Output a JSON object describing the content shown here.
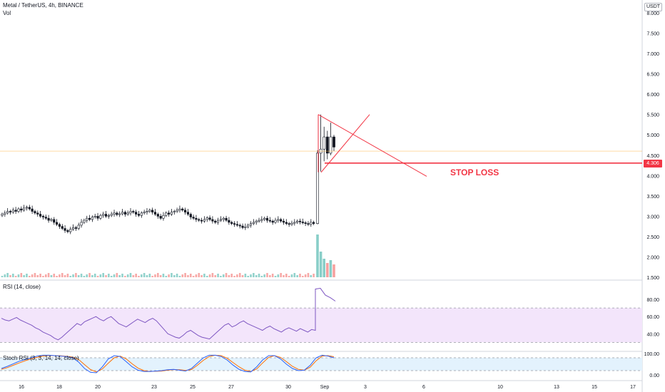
{
  "header": {
    "title": "Metal / TetherUS, 4h, BINANCE",
    "vol_label": "Vol",
    "currency": "USDT"
  },
  "annotations": {
    "stop_loss_label": "STOP LOSS",
    "current_price_tag": "4.306"
  },
  "colors": {
    "up": "#26a69a",
    "down": "#ef5350",
    "candle_body_up": "#ffffff",
    "candle_body_down": "#131722",
    "drawing": "#f23645",
    "rsi": "#7e57c2",
    "stoch_k": "#2962ff",
    "stoch_d": "#ff6d00",
    "rsi_band": "#f3e5fb",
    "stoch_band": "#e3f2fd"
  },
  "chart_data": {
    "type": "candlestick",
    "title": "Metal / TetherUS, 4h, BINANCE",
    "x_ticks": [
      "16",
      "18",
      "20",
      "23",
      "25",
      "27",
      "30",
      "Sep",
      "3",
      "6",
      "10",
      "13",
      "15",
      "17"
    ],
    "price_axis": {
      "ticks": [
        "8.000",
        "7.500",
        "7.000",
        "6.500",
        "6.000",
        "5.500",
        "5.000",
        "4.500",
        "4.000",
        "3.500",
        "3.000",
        "2.500",
        "2.000",
        "1.500"
      ],
      "range": [
        1.5,
        8.0
      ]
    },
    "current_price": 4.6,
    "stop_loss": 4.306,
    "closes_before_breakout": [
      3.05,
      3.08,
      3.12,
      3.1,
      3.15,
      3.12,
      3.18,
      3.15,
      3.2,
      3.22,
      3.18,
      3.12,
      3.08,
      3.05,
      3.0,
      2.98,
      2.95,
      2.9,
      2.92,
      2.85,
      2.8,
      2.75,
      2.7,
      2.65,
      2.62,
      2.68,
      2.72,
      2.7,
      2.78,
      2.85,
      2.9,
      2.95,
      2.92,
      2.98,
      3.0,
      2.95,
      3.02,
      3.05,
      3.0,
      3.02,
      3.05,
      3.08,
      3.04,
      3.06,
      3.1,
      3.05,
      3.08,
      3.12,
      3.1,
      3.05,
      3.02,
      3.08,
      3.1,
      3.12,
      3.15,
      3.1,
      3.05,
      3.0,
      2.95,
      3.02,
      3.08,
      3.05,
      3.1,
      3.12,
      3.15,
      3.18,
      3.15,
      3.1,
      3.05,
      2.98,
      2.95,
      2.92,
      2.9,
      2.88,
      2.92,
      2.96,
      2.92,
      2.88,
      2.85,
      2.9,
      2.92,
      2.95,
      2.9,
      2.85,
      2.82,
      2.8,
      2.78,
      2.76,
      2.72,
      2.74,
      2.78,
      2.82,
      2.85,
      2.88,
      2.9,
      2.92,
      2.95,
      2.9,
      2.88,
      2.85,
      2.9,
      2.92,
      2.88,
      2.85,
      2.82,
      2.8,
      2.83,
      2.85,
      2.88,
      2.86,
      2.84,
      2.82,
      2.8,
      2.85,
      2.82
    ],
    "breakout_candles": [
      {
        "o": 2.82,
        "h": 4.62,
        "l": 2.8,
        "c": 4.55
      },
      {
        "o": 4.55,
        "h": 5.5,
        "l": 4.1,
        "c": 4.65
      },
      {
        "o": 4.65,
        "h": 5.2,
        "l": 4.35,
        "c": 4.95
      },
      {
        "o": 4.95,
        "h": 5.1,
        "l": 4.4,
        "c": 4.55
      },
      {
        "o": 4.55,
        "h": 5.3,
        "l": 4.5,
        "c": 4.95
      },
      {
        "o": 4.95,
        "h": 5.0,
        "l": 4.6,
        "c": 4.7
      }
    ],
    "drawings": {
      "triangle_top": [
        [
          5.5
        ],
        [
          5.0
        ]
      ],
      "support_to": 4.85,
      "downtrend_end": 3.98,
      "stop_loss_line": 4.306
    },
    "indicators": {
      "volume": {
        "label": "Vol"
      },
      "rsi": {
        "label": "RSI (14, close)",
        "ticks": [
          "80.00",
          "60.00",
          "40.00"
        ],
        "range": [
          27,
          95
        ],
        "bands": [
          30,
          70
        ],
        "values": [
          58,
          56,
          55,
          57,
          59,
          56,
          54,
          52,
          50,
          47,
          45,
          42,
          40,
          38,
          35,
          33,
          36,
          40,
          44,
          48,
          52,
          50,
          54,
          56,
          58,
          60,
          57,
          55,
          58,
          60,
          56,
          52,
          50,
          48,
          51,
          54,
          57,
          55,
          53,
          56,
          58,
          55,
          50,
          45,
          40,
          38,
          36,
          35,
          38,
          42,
          44,
          41,
          38,
          36,
          35,
          34,
          38,
          42,
          46,
          50,
          52,
          48,
          50,
          53,
          55,
          52,
          50,
          48,
          46,
          44,
          47,
          49,
          46,
          44,
          42,
          45,
          47,
          45,
          43,
          46,
          44,
          42,
          45,
          44,
          92,
          93,
          85,
          82,
          78
        ]
      },
      "stoch_rsi": {
        "label": "Stoch RSI (3, 3, 14, 14, close)",
        "ticks": [
          "100.00",
          "0.00"
        ],
        "range": [
          0,
          100
        ],
        "bands": [
          20,
          80
        ],
        "k": [
          30,
          40,
          52,
          64,
          72,
          80,
          88,
          92,
          92,
          90,
          88,
          86,
          80,
          60,
          30,
          12,
          10,
          38,
          75,
          90,
          86,
          62,
          38,
          22,
          16,
          16,
          18,
          20,
          24,
          26,
          22,
          18,
          30,
          55,
          80,
          92,
          92,
          86,
          70,
          46,
          26,
          16,
          14,
          38,
          70,
          90,
          90,
          75,
          50,
          30,
          20,
          22,
          45,
          80,
          92,
          88,
          80
        ],
        "d": [
          26,
          34,
          45,
          56,
          66,
          75,
          82,
          88,
          91,
          90,
          89,
          87,
          83,
          72,
          48,
          25,
          14,
          28,
          55,
          80,
          88,
          75,
          52,
          32,
          20,
          16,
          17,
          18,
          22,
          25,
          24,
          21,
          25,
          45,
          68,
          86,
          92,
          90,
          78,
          58,
          38,
          22,
          16,
          28,
          56,
          82,
          90,
          82,
          62,
          40,
          26,
          22,
          36,
          66,
          88,
          90,
          85
        ]
      }
    }
  }
}
